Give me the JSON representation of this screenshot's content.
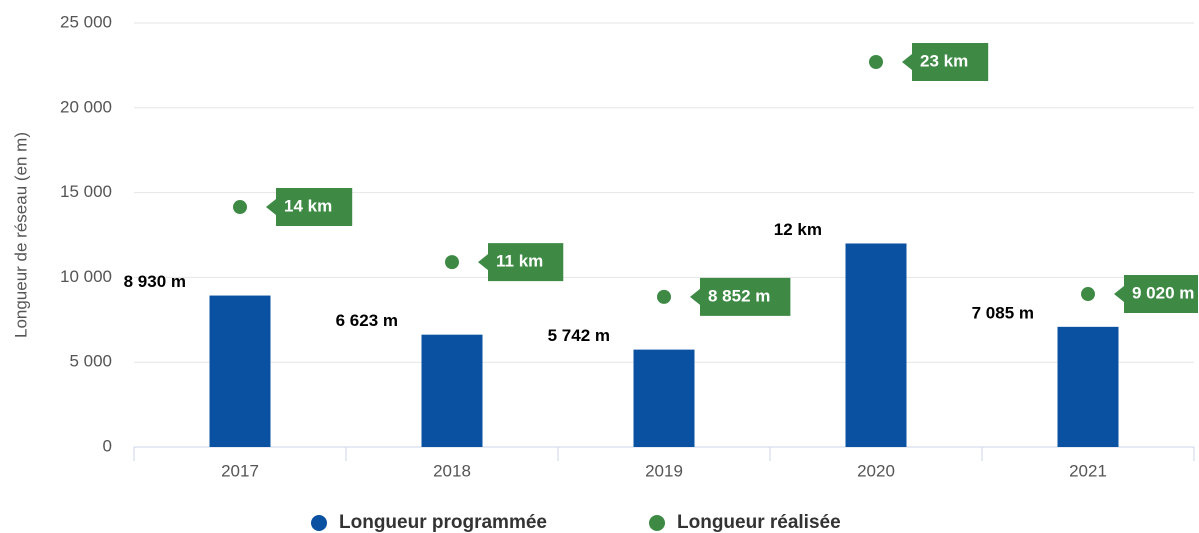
{
  "chart_data": {
    "type": "bar",
    "y_label": "Longueur de réseau (en m)",
    "categories": [
      "2017",
      "2018",
      "2019",
      "2020",
      "2021"
    ],
    "ylim": [
      0,
      25000
    ],
    "yticks": [
      {
        "value": 0,
        "label": "0"
      },
      {
        "value": 5000,
        "label": "5 000"
      },
      {
        "value": 10000,
        "label": "10 000"
      },
      {
        "value": 15000,
        "label": "15 000"
      },
      {
        "value": 20000,
        "label": "20 000"
      },
      {
        "value": 25000,
        "label": "25 000"
      }
    ],
    "grid": true,
    "legend": "bottom",
    "series": [
      {
        "name": "Longueur programmée",
        "type": "bar",
        "color": "#0a51a1",
        "values": [
          8930,
          6623,
          5742,
          12000,
          7085
        ],
        "value_labels": [
          "8 930 m",
          "6 623 m",
          "5 742 m",
          "12 km",
          "7 085 m"
        ]
      },
      {
        "name": "Longueur réalisée",
        "type": "scatter",
        "color": "#3e8a45",
        "values": [
          14150,
          10900,
          8852,
          22700,
          9020
        ],
        "value_labels": [
          "14 km",
          "11 km",
          "8 852 m",
          "23 km",
          "9 020 m"
        ]
      }
    ]
  }
}
